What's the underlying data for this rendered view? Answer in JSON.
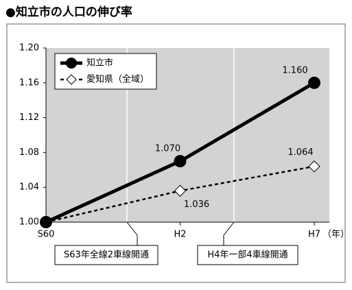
{
  "chart_data": {
    "type": "line",
    "title": "●知立市の人口の伸び率",
    "categories": [
      "S60",
      "H2",
      "H7"
    ],
    "x_label": "（年）",
    "series": [
      {
        "name": "知立市",
        "color": "#000000",
        "values": [
          1.0,
          1.07,
          1.16
        ],
        "value_labels": [
          null,
          "1.070",
          "1.160"
        ],
        "style": "solid",
        "marker": "circle"
      },
      {
        "name": "愛知県（全域）",
        "color": "#000000",
        "values": [
          1.0,
          1.036,
          1.064
        ],
        "value_labels": [
          null,
          "1.036",
          "1.064"
        ],
        "style": "dashed",
        "marker": "diamond"
      }
    ],
    "ylim": [
      1.0,
      1.2
    ],
    "yticks": [
      {
        "value": 1.0,
        "label": "1.00"
      },
      1.04,
      1.08,
      1.12,
      1.16,
      {
        "value": 1.2,
        "label": "1.20"
      }
    ],
    "annotations": [
      "S63年全線2車線開通",
      "H4年一部4車線開通"
    ],
    "legend": "top-left"
  }
}
